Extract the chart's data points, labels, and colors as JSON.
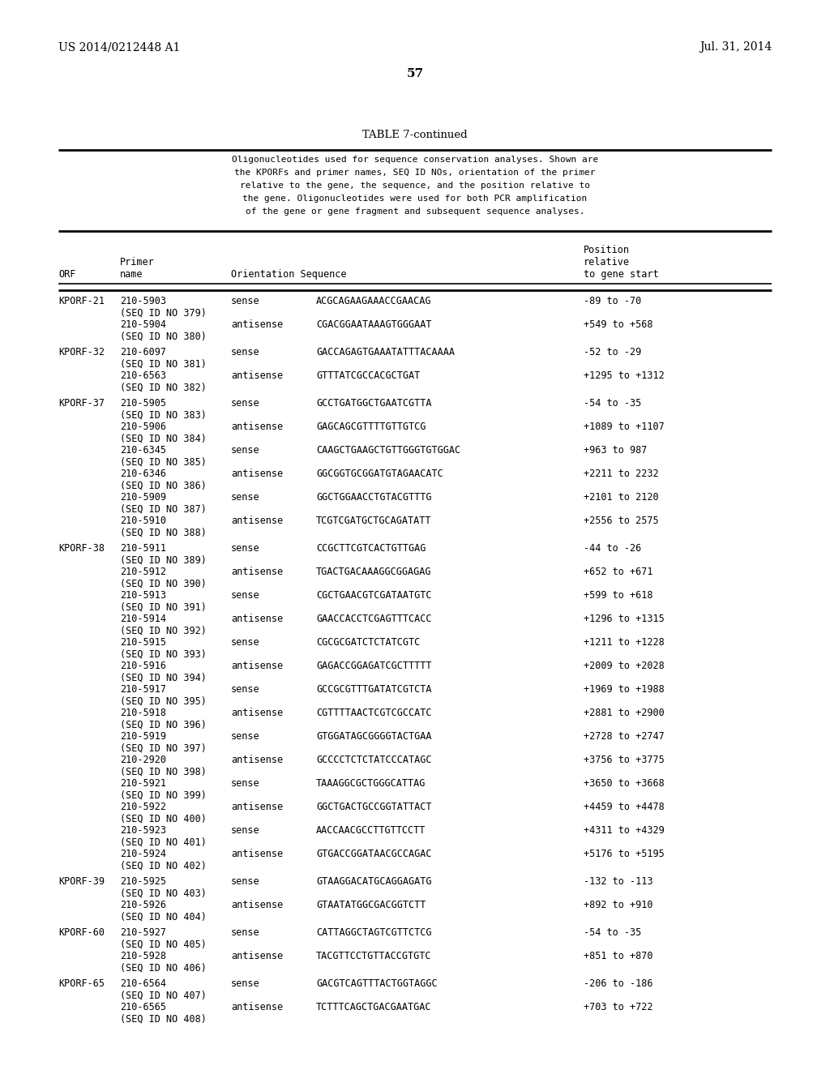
{
  "patent_number": "US 2014/0212448 A1",
  "date": "Jul. 31, 2014",
  "page_number": "57",
  "table_title": "TABLE 7-continued",
  "description": [
    "Oligonucleotides used for sequence conservation analyses. Shown are",
    "the KPORFs and primer names, SEQ ID NOs, orientation of the primer",
    "relative to the gene, the sequence, and the position relative to",
    "the gene. Oligonucleotides were used for both PCR amplification",
    "of the gene or gene fragment and subsequent sequence analyses."
  ],
  "rows": [
    {
      "orf": "KPORF-21",
      "primer": "210-5903",
      "seqid": "(SEQ ID NO 379)",
      "orientation": "sense",
      "sequence": "ACGCAGAAGAAACCGAACAG",
      "position": "-89 to -70"
    },
    {
      "orf": "",
      "primer": "210-5904",
      "seqid": "(SEQ ID NO 380)",
      "orientation": "antisense",
      "sequence": "CGACGGAATAAAGTGGGAAT",
      "position": "+549 to +568"
    },
    {
      "orf": "KPORF-32",
      "primer": "210-6097",
      "seqid": "(SEQ ID NO 381)",
      "orientation": "sense",
      "sequence": "GACCAGAGTGAAATATTTACAAAA",
      "position": "-52 to -29"
    },
    {
      "orf": "",
      "primer": "210-6563",
      "seqid": "(SEQ ID NO 382)",
      "orientation": "antisense",
      "sequence": "GTTTATCGCCACGCTGAT",
      "position": "+1295 to +1312"
    },
    {
      "orf": "KPORF-37",
      "primer": "210-5905",
      "seqid": "(SEQ ID NO 383)",
      "orientation": "sense",
      "sequence": "GCCTGATGGCTGAATCGTTA",
      "position": "-54 to -35"
    },
    {
      "orf": "",
      "primer": "210-5906",
      "seqid": "(SEQ ID NO 384)",
      "orientation": "antisense",
      "sequence": "GAGCAGCGTTTTGTTGTCG",
      "position": "+1089 to +1107"
    },
    {
      "orf": "",
      "primer": "210-6345",
      "seqid": "(SEQ ID NO 385)",
      "orientation": "sense",
      "sequence": "CAAGCTGAAGCTGTTGGGTGTGGAC",
      "position": "+963 to 987"
    },
    {
      "orf": "",
      "primer": "210-6346",
      "seqid": "(SEQ ID NO 386)",
      "orientation": "antisense",
      "sequence": "GGCGGTGCGGATGTAGAACATC",
      "position": "+2211 to 2232"
    },
    {
      "orf": "",
      "primer": "210-5909",
      "seqid": "(SEQ ID NO 387)",
      "orientation": "sense",
      "sequence": "GGCTGGAACCTGTACGTTTG",
      "position": "+2101 to 2120"
    },
    {
      "orf": "",
      "primer": "210-5910",
      "seqid": "(SEQ ID NO 388)",
      "orientation": "antisense",
      "sequence": "TCGTCGATGCTGCAGATATT",
      "position": "+2556 to 2575"
    },
    {
      "orf": "KPORF-38",
      "primer": "210-5911",
      "seqid": "(SEQ ID NO 389)",
      "orientation": "sense",
      "sequence": "CCGCTTCGTCACTGTTGAG",
      "position": "-44 to -26"
    },
    {
      "orf": "",
      "primer": "210-5912",
      "seqid": "(SEQ ID NO 390)",
      "orientation": "antisense",
      "sequence": "TGACTGACAAAGGCGGAGAG",
      "position": "+652 to +671"
    },
    {
      "orf": "",
      "primer": "210-5913",
      "seqid": "(SEQ ID NO 391)",
      "orientation": "sense",
      "sequence": "CGCTGAACGTCGATAATGTC",
      "position": "+599 to +618"
    },
    {
      "orf": "",
      "primer": "210-5914",
      "seqid": "(SEQ ID NO 392)",
      "orientation": "antisense",
      "sequence": "GAACCACCTCGAGTTTCACC",
      "position": "+1296 to +1315"
    },
    {
      "orf": "",
      "primer": "210-5915",
      "seqid": "(SEQ ID NO 393)",
      "orientation": "sense",
      "sequence": "CGCGCGATCTCTATCGTC",
      "position": "+1211 to +1228"
    },
    {
      "orf": "",
      "primer": "210-5916",
      "seqid": "(SEQ ID NO 394)",
      "orientation": "antisense",
      "sequence": "GAGACCGGAGATCGCTTTTT",
      "position": "+2009 to +2028"
    },
    {
      "orf": "",
      "primer": "210-5917",
      "seqid": "(SEQ ID NO 395)",
      "orientation": "sense",
      "sequence": "GCCGCGTTTGATATCGTCTA",
      "position": "+1969 to +1988"
    },
    {
      "orf": "",
      "primer": "210-5918",
      "seqid": "(SEQ ID NO 396)",
      "orientation": "antisense",
      "sequence": "CGTTTTAACTCGTCGCCATC",
      "position": "+2881 to +2900"
    },
    {
      "orf": "",
      "primer": "210-5919",
      "seqid": "(SEQ ID NO 397)",
      "orientation": "sense",
      "sequence": "GTGGATAGCGGGGTACTGAA",
      "position": "+2728 to +2747"
    },
    {
      "orf": "",
      "primer": "210-2920",
      "seqid": "(SEQ ID NO 398)",
      "orientation": "antisense",
      "sequence": "GCCCCTCTCTATCCCATAGC",
      "position": "+3756 to +3775"
    },
    {
      "orf": "",
      "primer": "210-5921",
      "seqid": "(SEQ ID NO 399)",
      "orientation": "sense",
      "sequence": "TAAAGGCGCTGGGCATTAG",
      "position": "+3650 to +3668"
    },
    {
      "orf": "",
      "primer": "210-5922",
      "seqid": "(SEQ ID NO 400)",
      "orientation": "antisense",
      "sequence": "GGCTGACTGCCGGTATTACT",
      "position": "+4459 to +4478"
    },
    {
      "orf": "",
      "primer": "210-5923",
      "seqid": "(SEQ ID NO 401)",
      "orientation": "sense",
      "sequence": "AACCAACGCCTTGTTCCTT",
      "position": "+4311 to +4329"
    },
    {
      "orf": "",
      "primer": "210-5924",
      "seqid": "(SEQ ID NO 402)",
      "orientation": "antisense",
      "sequence": "GTGACCGGATAACGCCAGAC",
      "position": "+5176 to +5195"
    },
    {
      "orf": "KPORF-39",
      "primer": "210-5925",
      "seqid": "(SEQ ID NO 403)",
      "orientation": "sense",
      "sequence": "GTAAGGACATGCAGGAGATG",
      "position": "-132 to -113"
    },
    {
      "orf": "",
      "primer": "210-5926",
      "seqid": "(SEQ ID NO 404)",
      "orientation": "antisense",
      "sequence": "GTAATATGGCGACGGTCTT",
      "position": "+892 to +910"
    },
    {
      "orf": "KPORF-60",
      "primer": "210-5927",
      "seqid": "(SEQ ID NO 405)",
      "orientation": "sense",
      "sequence": "CATTAGGCTAGTCGTTCTCG",
      "position": "-54 to -35"
    },
    {
      "orf": "",
      "primer": "210-5928",
      "seqid": "(SEQ ID NO 406)",
      "orientation": "antisense",
      "sequence": "TACGTTCCTGTTACCGTGTC",
      "position": "+851 to +870"
    },
    {
      "orf": "KPORF-65",
      "primer": "210-6564",
      "seqid": "(SEQ ID NO 407)",
      "orientation": "sense",
      "sequence": "GACGTCAGTTTACTGGTAGGC",
      "position": "-206 to -186"
    },
    {
      "orf": "",
      "primer": "210-6565",
      "seqid": "(SEQ ID NO 408)",
      "orientation": "antisense",
      "sequence": "TCTTTCAGCTGACGAATGAC",
      "position": "+703 to +722"
    }
  ],
  "bg_color": "#ffffff",
  "text_color": "#000000"
}
